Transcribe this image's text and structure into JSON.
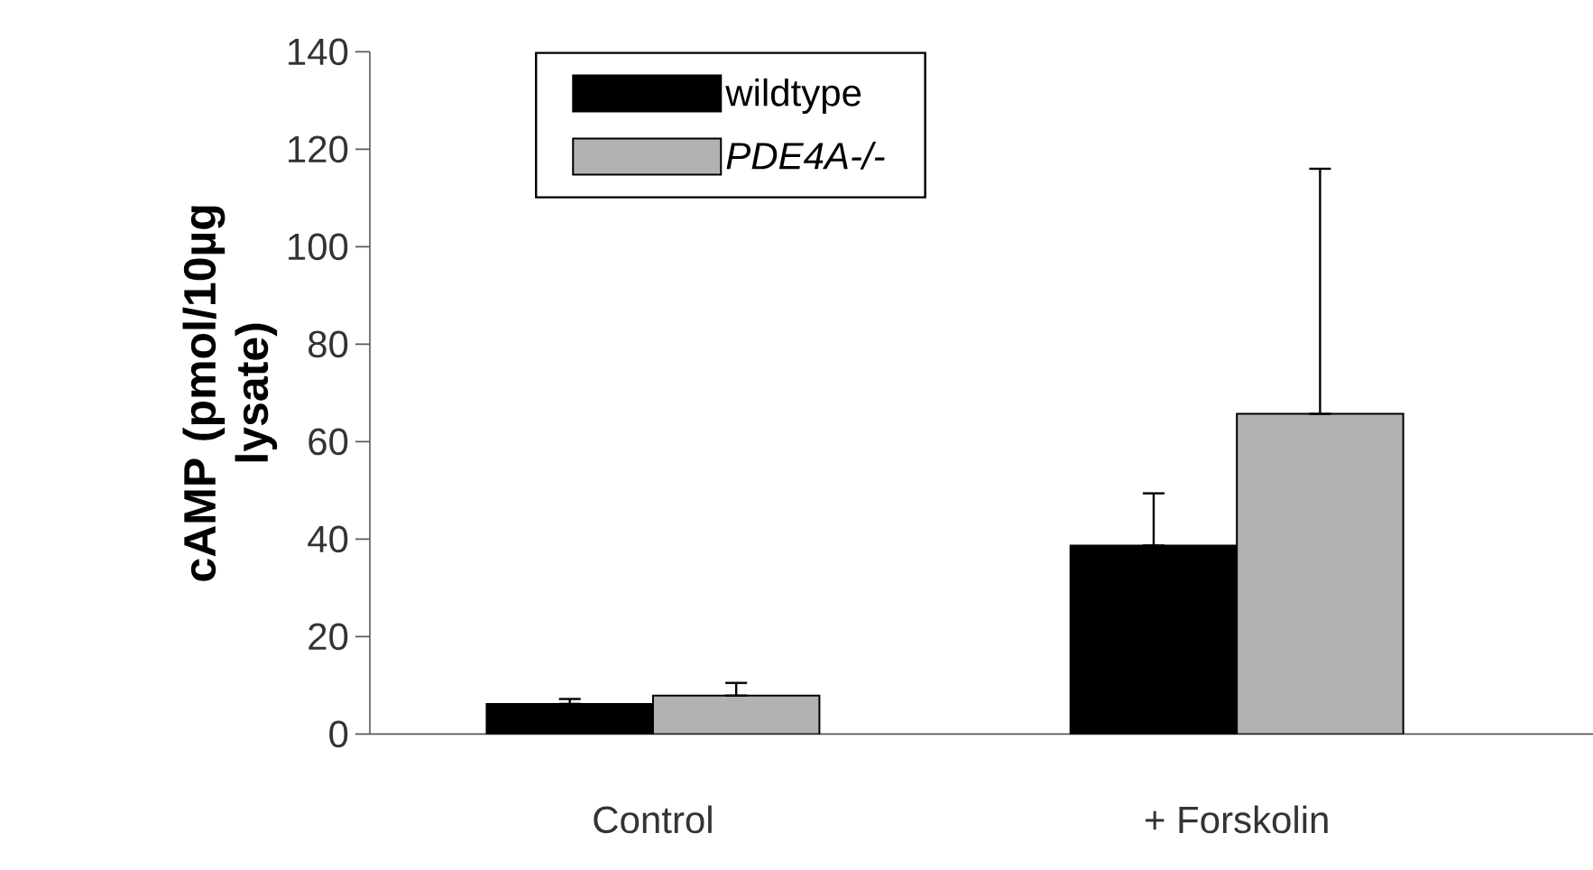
{
  "chart_data": {
    "type": "bar",
    "ylabel": "cAMP (pmol/10µg lysate)",
    "categories": [
      "Control",
      "+ Forskolin"
    ],
    "series": [
      {
        "name": "wildtype",
        "color": "#000000",
        "values": [
          6.2,
          38.7
        ],
        "errors": [
          [
            6.2,
            7.2
          ],
          [
            38.7,
            49.4
          ]
        ]
      },
      {
        "name": "*PDE4A-/-*",
        "color": "#b2b2b2",
        "values": [
          7.9,
          65.7
        ],
        "errors": [
          [
            7.9,
            10.5
          ],
          [
            65.7,
            116
          ]
        ]
      }
    ],
    "ylim": [
      0,
      140
    ],
    "yticks": [
      0,
      20,
      40,
      60,
      80,
      100,
      120,
      140
    ],
    "legend": "top left",
    "grid": false
  }
}
